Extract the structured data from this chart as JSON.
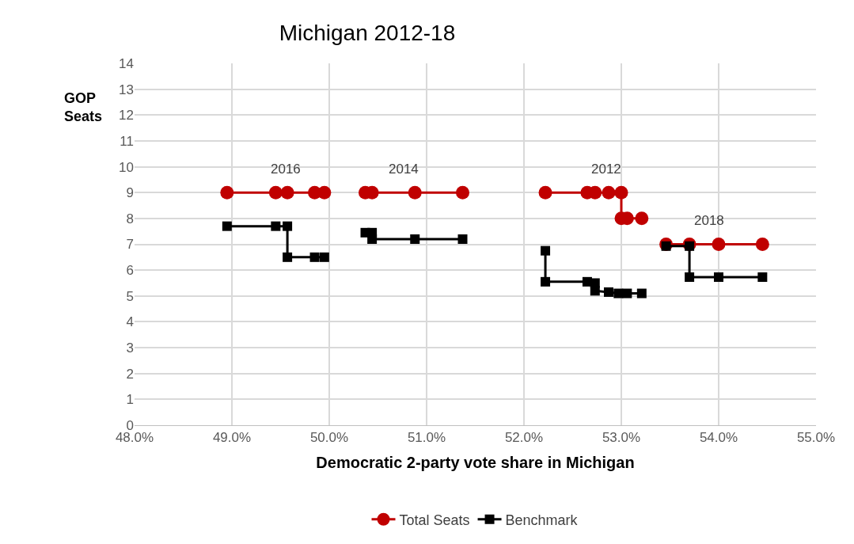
{
  "chart_data": {
    "type": "line",
    "title": "Michigan 2012-18",
    "xlabel": "Democratic 2-party vote share in Michigan",
    "ylabel": "GOP Seats",
    "xlim": [
      48.0,
      55.0
    ],
    "xticks": [
      {
        "value": 48,
        "label": "48.0%"
      },
      {
        "value": 49,
        "label": "49.0%"
      },
      {
        "value": 50,
        "label": "50.0%"
      },
      {
        "value": 51,
        "label": "51.0%"
      },
      {
        "value": 52,
        "label": "52.0%"
      },
      {
        "value": 53,
        "label": "53.0%"
      },
      {
        "value": 54,
        "label": "54.0%"
      },
      {
        "value": 55,
        "label": "55.0%"
      }
    ],
    "ylim": [
      0,
      14
    ],
    "yticks": [
      0,
      1,
      2,
      3,
      4,
      5,
      6,
      7,
      8,
      9,
      10,
      11,
      12,
      13,
      14
    ],
    "grid": true,
    "legend": "bottom",
    "line_style": "solid",
    "series": [
      {
        "name": "Total Seats",
        "color": "#c00000",
        "marker": "circle",
        "x": [
          48.95,
          49.45,
          49.57,
          49.85,
          49.95,
          50.0,
          50.37,
          50.44,
          50.88,
          51.37,
          51.5,
          52.22,
          52.65,
          52.73,
          52.87,
          53.0,
          53.0,
          53.06,
          53.21,
          53.3,
          53.46,
          53.7,
          54.0,
          54.45
        ],
        "values": [
          9,
          9,
          9,
          9,
          9,
          null,
          9,
          9,
          9,
          9,
          null,
          9,
          9,
          9,
          9,
          9,
          8,
          8,
          8,
          null,
          7,
          7,
          7,
          7
        ]
      },
      {
        "name": "Benchmark",
        "color": "#000000",
        "marker": "square",
        "x": [
          48.95,
          49.45,
          49.57,
          49.57,
          49.85,
          49.95,
          50.0,
          50.37,
          50.44,
          50.44,
          50.88,
          51.37,
          51.5,
          52.22,
          52.22,
          52.65,
          52.73,
          52.73,
          52.87,
          52.97,
          53.06,
          53.21,
          53.3,
          53.46,
          53.7,
          53.7,
          54.0,
          54.45
        ],
        "values": [
          7.7,
          7.7,
          7.7,
          6.5,
          6.5,
          6.5,
          null,
          7.45,
          7.45,
          7.2,
          7.2,
          7.2,
          null,
          6.75,
          5.55,
          5.55,
          5.5,
          5.2,
          5.15,
          5.1,
          5.1,
          5.1,
          null,
          6.93,
          6.93,
          5.73,
          5.73,
          5.73
        ]
      }
    ],
    "annotations": [
      "2016",
      "2014",
      "2012",
      "2018"
    ]
  }
}
